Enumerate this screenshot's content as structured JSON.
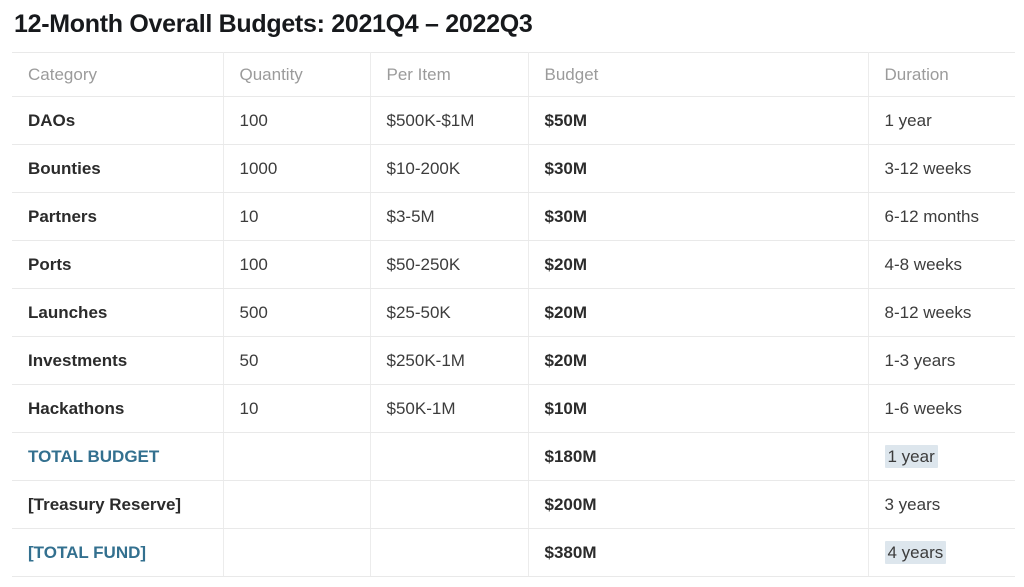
{
  "page": {
    "title": "12-Month Overall Budgets: 2021Q4 – 2022Q3"
  },
  "table": {
    "columns": [
      "Category",
      "Quantity",
      "Per Item",
      "Budget",
      "Duration"
    ],
    "rows": [
      {
        "category": "DAOs",
        "quantity": "100",
        "per_item": "$500K-$1M",
        "budget": "$50M",
        "duration": "1 year",
        "accent": false,
        "duration_highlighted": false
      },
      {
        "category": "Bounties",
        "quantity": "1000",
        "per_item": "$10-200K",
        "budget": "$30M",
        "duration": "3-12 weeks",
        "accent": false,
        "duration_highlighted": false
      },
      {
        "category": "Partners",
        "quantity": "10",
        "per_item": "$3-5M",
        "budget": "$30M",
        "duration": "6-12 months",
        "accent": false,
        "duration_highlighted": false
      },
      {
        "category": "Ports",
        "quantity": "100",
        "per_item": "$50-250K",
        "budget": "$20M",
        "duration": "4-8 weeks",
        "accent": false,
        "duration_highlighted": false
      },
      {
        "category": "Launches",
        "quantity": "500",
        "per_item": "$25-50K",
        "budget": "$20M",
        "duration": "8-12 weeks",
        "accent": false,
        "duration_highlighted": false
      },
      {
        "category": "Investments",
        "quantity": "50",
        "per_item": "$250K-1M",
        "budget": "$20M",
        "duration": "1-3 years",
        "accent": false,
        "duration_highlighted": false
      },
      {
        "category": "Hackathons",
        "quantity": "10",
        "per_item": "$50K-1M",
        "budget": "$10M",
        "duration": "1-6 weeks",
        "accent": false,
        "duration_highlighted": false
      },
      {
        "category": "TOTAL BUDGET",
        "quantity": "",
        "per_item": "",
        "budget": "$180M",
        "duration": "1 year",
        "accent": true,
        "duration_highlighted": true
      },
      {
        "category": "[Treasury Reserve]",
        "quantity": "",
        "per_item": "",
        "budget": "$200M",
        "duration": "3 years",
        "accent": false,
        "duration_highlighted": false
      },
      {
        "category": "[TOTAL FUND]",
        "quantity": "",
        "per_item": "",
        "budget": "$380M",
        "duration": "4 years",
        "accent": true,
        "duration_highlighted": true
      }
    ]
  },
  "colors": {
    "accent_blue": "#33708f",
    "duration_highlight": "#dde6ed",
    "header_text": "#9b9b9b",
    "body_text": "#3c3c3c",
    "bold_text": "#2b2b2b",
    "grid_line": "#e9e9e9"
  }
}
